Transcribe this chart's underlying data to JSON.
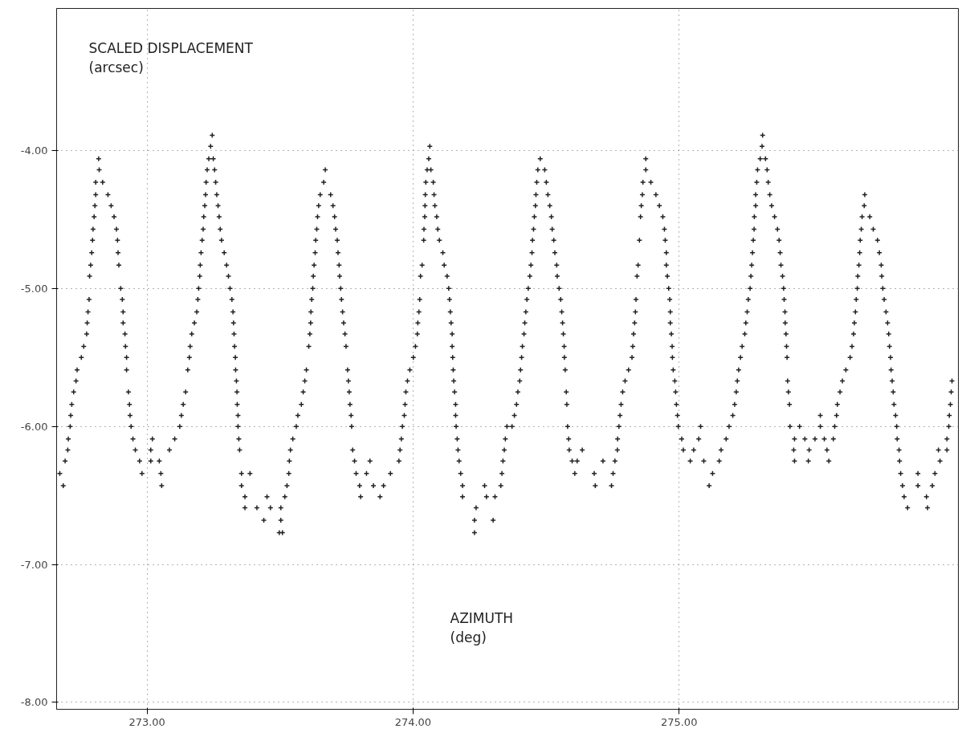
{
  "chart_data": {
    "type": "scatter",
    "ylabel": "SCALED DISPLACEMENT\n(arcsec)",
    "xlabel": "AZIMUTH\n(deg)",
    "color": "#222222",
    "marker": "cross",
    "grid": true,
    "xlim": [
      272.66,
      276.05
    ],
    "ylim": [
      -8.05,
      -2.97
    ],
    "xticks": [
      {
        "value": 273,
        "label": "273.00"
      },
      {
        "value": 274,
        "label": "274.00"
      },
      {
        "value": 275,
        "label": "275.00"
      }
    ],
    "yticks": [
      {
        "value": -8,
        "label": "-8.00"
      },
      {
        "value": -7,
        "label": "-7.00"
      },
      {
        "value": -6,
        "label": "-6.00"
      },
      {
        "value": -5,
        "label": "-5.00"
      },
      {
        "value": -4,
        "label": "-4.00"
      }
    ],
    "x": [
      272.672,
      272.685,
      272.692,
      272.702,
      272.704,
      272.711,
      272.713,
      272.717,
      272.724,
      272.733,
      272.737,
      272.753,
      272.762,
      272.773,
      272.775,
      272.778,
      272.782,
      272.784,
      272.788,
      272.792,
      272.795,
      272.797,
      272.801,
      272.804,
      272.807,
      272.807,
      272.82,
      272.818,
      272.833,
      272.853,
      272.865,
      272.876,
      272.885,
      272.889,
      272.891,
      272.894,
      272.901,
      272.907,
      272.91,
      272.91,
      272.917,
      272.919,
      272.923,
      272.923,
      272.93,
      272.934,
      272.936,
      272.94,
      272.947,
      272.956,
      272.972,
      272.981,
      273.014,
      273.02,
      273.014,
      273.052,
      273.055,
      273.046,
      273.084,
      273.104,
      273.123,
      273.129,
      273.136,
      273.145,
      273.153,
      273.159,
      273.162,
      273.168,
      273.178,
      273.187,
      273.191,
      273.194,
      273.198,
      273.2,
      273.203,
      273.207,
      273.211,
      273.213,
      273.217,
      273.22,
      273.222,
      273.226,
      273.232,
      273.239,
      273.245,
      273.249,
      273.254,
      273.258,
      273.262,
      273.267,
      273.271,
      273.275,
      273.28,
      273.29,
      273.299,
      273.306,
      273.312,
      273.319,
      273.323,
      273.325,
      273.327,
      273.329,
      273.332,
      273.333,
      273.336,
      273.338,
      273.339,
      273.342,
      273.342,
      273.345,
      273.348,
      273.355,
      273.355,
      273.368,
      273.368,
      273.387,
      273.413,
      273.439,
      273.451,
      273.464,
      273.497,
      273.503,
      273.503,
      273.509,
      273.518,
      273.526,
      273.533,
      273.535,
      273.539,
      273.548,
      273.561,
      273.567,
      273.58,
      273.587,
      273.593,
      273.599,
      273.608,
      273.612,
      273.615,
      273.616,
      273.619,
      273.623,
      273.625,
      273.628,
      273.632,
      273.634,
      273.638,
      273.641,
      273.645,
      273.651,
      273.664,
      273.67,
      273.69,
      273.699,
      273.705,
      273.709,
      273.715,
      273.718,
      273.722,
      273.724,
      273.728,
      273.731,
      273.735,
      273.739,
      273.744,
      273.748,
      273.754,
      273.757,
      273.76,
      273.763,
      273.767,
      273.769,
      273.773,
      273.78,
      273.786,
      273.799,
      273.803,
      273.825,
      273.838,
      273.851,
      273.876,
      273.889,
      273.915,
      273.947,
      273.951,
      273.956,
      273.96,
      273.967,
      273.97,
      273.973,
      273.979,
      273.988,
      274.001,
      274.009,
      274.016,
      274.018,
      274.022,
      274.025,
      274.028,
      274.034,
      274.04,
      274.041,
      274.044,
      274.045,
      274.046,
      274.048,
      274.053,
      274.059,
      274.063,
      274.067,
      274.076,
      274.079,
      274.082,
      274.089,
      274.093,
      274.099,
      274.112,
      274.117,
      274.128,
      274.134,
      274.137,
      274.14,
      274.143,
      274.147,
      274.147,
      274.149,
      274.151,
      274.153,
      274.156,
      274.16,
      274.16,
      274.162,
      274.166,
      274.169,
      274.173,
      274.179,
      274.186,
      274.186,
      274.231,
      274.231,
      274.237,
      274.269,
      274.276,
      274.308,
      274.301,
      274.33,
      274.334,
      274.338,
      274.343,
      274.347,
      274.353,
      274.372,
      274.381,
      274.389,
      274.394,
      274.401,
      274.404,
      274.408,
      274.411,
      274.417,
      274.42,
      274.424,
      274.428,
      274.433,
      274.439,
      274.443,
      274.447,
      274.449,
      274.453,
      274.456,
      274.46,
      274.462,
      274.465,
      274.469,
      274.478,
      274.495,
      274.501,
      274.507,
      274.514,
      274.52,
      274.523,
      274.529,
      274.533,
      274.54,
      274.542,
      274.549,
      274.555,
      274.559,
      274.562,
      274.565,
      274.568,
      274.569,
      274.572,
      274.576,
      274.578,
      274.581,
      274.585,
      274.587,
      274.598,
      274.608,
      274.636,
      274.617,
      274.681,
      274.685,
      274.714,
      274.746,
      274.752,
      274.759,
      274.768,
      274.769,
      274.774,
      274.778,
      274.782,
      274.788,
      274.797,
      274.81,
      274.823,
      274.826,
      274.829,
      274.833,
      274.836,
      274.838,
      274.842,
      274.846,
      274.851,
      274.855,
      274.858,
      274.862,
      274.864,
      274.875,
      274.875,
      274.894,
      274.913,
      274.926,
      274.939,
      274.945,
      274.948,
      274.952,
      274.952,
      274.956,
      274.961,
      274.965,
      274.967,
      274.967,
      274.971,
      274.974,
      274.975,
      274.978,
      274.984,
      274.987,
      274.99,
      274.994,
      274.997,
      275.01,
      275.016,
      275.042,
      275.081,
      275.074,
      275.055,
      275.093,
      275.113,
      275.126,
      275.151,
      275.158,
      275.177,
      275.188,
      275.202,
      275.209,
      275.215,
      275.219,
      275.224,
      275.231,
      275.237,
      275.247,
      275.251,
      275.256,
      275.26,
      275.267,
      275.27,
      275.273,
      275.276,
      275.279,
      275.282,
      275.283,
      275.288,
      275.288,
      275.292,
      275.295,
      275.305,
      275.312,
      275.314,
      275.325,
      275.331,
      275.335,
      275.341,
      275.348,
      275.359,
      275.37,
      275.376,
      275.38,
      275.383,
      275.389,
      275.393,
      275.395,
      275.398,
      275.399,
      275.402,
      275.404,
      275.406,
      275.408,
      275.411,
      275.415,
      275.417,
      275.434,
      275.431,
      275.434,
      275.453,
      275.473,
      275.489,
      275.486,
      275.511,
      275.531,
      275.531,
      275.546,
      275.556,
      275.563,
      275.58,
      275.585,
      275.592,
      275.595,
      275.605,
      275.614,
      275.627,
      275.643,
      275.65,
      275.656,
      275.659,
      275.663,
      275.666,
      275.67,
      275.672,
      275.676,
      275.679,
      275.681,
      275.685,
      275.688,
      275.696,
      275.698,
      275.717,
      275.73,
      275.746,
      275.753,
      275.76,
      275.762,
      275.766,
      275.771,
      275.778,
      275.784,
      275.788,
      275.791,
      275.795,
      275.797,
      275.801,
      275.805,
      275.808,
      275.814,
      275.818,
      275.82,
      275.827,
      275.829,
      275.833,
      275.84,
      275.846,
      275.859,
      275.898,
      275.898,
      275.934,
      275.93,
      275.952,
      275.962,
      275.981,
      275.975,
      276.007,
      276.007,
      276.014,
      276.016,
      276.02,
      276.023,
      276.026
    ],
    "values": [
      -6.34,
      -6.43,
      -6.25,
      -6.17,
      -6.09,
      -6.0,
      -5.92,
      -5.84,
      -5.75,
      -5.67,
      -5.59,
      -5.5,
      -5.42,
      -5.33,
      -5.25,
      -5.17,
      -5.08,
      -4.91,
      -4.83,
      -4.74,
      -4.65,
      -4.57,
      -4.48,
      -4.4,
      -4.32,
      -4.23,
      -4.14,
      -4.06,
      -4.23,
      -4.32,
      -4.4,
      -4.48,
      -4.57,
      -4.65,
      -4.74,
      -4.83,
      -5.0,
      -5.08,
      -5.17,
      -5.25,
      -5.33,
      -5.42,
      -5.5,
      -5.59,
      -5.75,
      -5.84,
      -5.92,
      -6.0,
      -6.09,
      -6.17,
      -6.25,
      -6.34,
      -6.25,
      -6.09,
      -6.17,
      -6.34,
      -6.43,
      -6.25,
      -6.17,
      -6.09,
      -6.0,
      -5.92,
      -5.84,
      -5.75,
      -5.59,
      -5.5,
      -5.42,
      -5.33,
      -5.25,
      -5.17,
      -5.08,
      -5.0,
      -4.91,
      -4.83,
      -4.74,
      -4.65,
      -4.57,
      -4.48,
      -4.4,
      -4.32,
      -4.23,
      -4.14,
      -4.06,
      -3.97,
      -3.89,
      -4.06,
      -4.14,
      -4.23,
      -4.32,
      -4.4,
      -4.48,
      -4.57,
      -4.65,
      -4.74,
      -4.83,
      -4.91,
      -5.0,
      -5.08,
      -5.17,
      -5.25,
      -5.33,
      -5.42,
      -5.5,
      -5.59,
      -5.67,
      -5.75,
      -5.84,
      -5.92,
      -6.0,
      -6.09,
      -6.17,
      -6.34,
      -6.43,
      -6.51,
      -6.59,
      -6.34,
      -6.59,
      -6.68,
      -6.51,
      -6.59,
      -6.77,
      -6.59,
      -6.68,
      -6.77,
      -6.51,
      -6.43,
      -6.34,
      -6.25,
      -6.17,
      -6.09,
      -6.0,
      -5.92,
      -5.84,
      -5.75,
      -5.67,
      -5.59,
      -5.42,
      -5.33,
      -5.25,
      -5.17,
      -5.08,
      -5.0,
      -4.91,
      -4.83,
      -4.74,
      -4.65,
      -4.57,
      -4.48,
      -4.4,
      -4.32,
      -4.23,
      -4.14,
      -4.32,
      -4.4,
      -4.48,
      -4.57,
      -4.65,
      -4.74,
      -4.83,
      -4.91,
      -5.0,
      -5.08,
      -5.17,
      -5.25,
      -5.33,
      -5.42,
      -5.59,
      -5.67,
      -5.75,
      -5.84,
      -5.92,
      -6.0,
      -6.17,
      -6.25,
      -6.34,
      -6.43,
      -6.51,
      -6.34,
      -6.25,
      -6.43,
      -6.51,
      -6.43,
      -6.34,
      -6.25,
      -6.17,
      -6.09,
      -6.0,
      -5.92,
      -5.84,
      -5.75,
      -5.67,
      -5.59,
      -5.5,
      -5.42,
      -5.33,
      -5.25,
      -5.17,
      -5.08,
      -4.91,
      -4.83,
      -4.65,
      -4.57,
      -4.48,
      -4.4,
      -4.32,
      -4.23,
      -4.14,
      -4.06,
      -3.97,
      -4.14,
      -4.23,
      -4.32,
      -4.4,
      -4.48,
      -4.57,
      -4.65,
      -4.74,
      -4.83,
      -4.91,
      -5.0,
      -5.08,
      -5.17,
      -5.25,
      -5.33,
      -5.42,
      -5.5,
      -5.59,
      -5.67,
      -5.75,
      -5.84,
      -5.92,
      -6.0,
      -6.09,
      -6.17,
      -6.25,
      -6.34,
      -6.43,
      -6.51,
      -6.77,
      -6.68,
      -6.59,
      -6.43,
      -6.51,
      -6.51,
      -6.68,
      -6.43,
      -6.34,
      -6.25,
      -6.17,
      -6.09,
      -6.0,
      -6.0,
      -5.92,
      -5.84,
      -5.75,
      -5.67,
      -5.59,
      -5.5,
      -5.42,
      -5.33,
      -5.25,
      -5.17,
      -5.08,
      -5.0,
      -4.91,
      -4.83,
      -4.74,
      -4.65,
      -4.57,
      -4.48,
      -4.4,
      -4.32,
      -4.23,
      -4.14,
      -4.06,
      -4.14,
      -4.23,
      -4.32,
      -4.4,
      -4.48,
      -4.57,
      -4.65,
      -4.74,
      -4.83,
      -4.91,
      -5.0,
      -5.08,
      -5.17,
      -5.25,
      -5.33,
      -5.42,
      -5.5,
      -5.59,
      -5.75,
      -5.84,
      -6.0,
      -6.09,
      -6.17,
      -6.25,
      -6.34,
      -6.17,
      -6.25,
      -6.34,
      -6.43,
      -6.25,
      -6.43,
      -6.34,
      -6.25,
      -6.17,
      -6.09,
      -6.0,
      -5.92,
      -5.84,
      -5.75,
      -5.67,
      -5.59,
      -5.5,
      -5.42,
      -5.33,
      -5.25,
      -5.17,
      -5.08,
      -4.91,
      -4.83,
      -4.65,
      -4.48,
      -4.4,
      -4.32,
      -4.23,
      -4.14,
      -4.06,
      -4.23,
      -4.32,
      -4.4,
      -4.48,
      -4.57,
      -4.65,
      -4.74,
      -4.83,
      -4.91,
      -5.0,
      -5.08,
      -5.17,
      -5.25,
      -5.33,
      -5.42,
      -5.5,
      -5.59,
      -5.67,
      -5.75,
      -5.84,
      -5.92,
      -6.0,
      -6.09,
      -6.17,
      -6.25,
      -6.0,
      -6.09,
      -6.17,
      -6.25,
      -6.43,
      -6.34,
      -6.25,
      -6.17,
      -6.09,
      -6.0,
      -5.92,
      -5.84,
      -5.75,
      -5.67,
      -5.59,
      -5.5,
      -5.42,
      -5.33,
      -5.25,
      -5.17,
      -5.08,
      -5.0,
      -4.91,
      -4.83,
      -4.74,
      -4.65,
      -4.57,
      -4.48,
      -4.4,
      -4.32,
      -4.23,
      -4.14,
      -4.06,
      -3.97,
      -3.89,
      -4.06,
      -4.14,
      -4.23,
      -4.32,
      -4.4,
      -4.48,
      -4.57,
      -4.65,
      -4.74,
      -4.83,
      -4.91,
      -5.0,
      -5.08,
      -5.17,
      -5.25,
      -5.33,
      -5.42,
      -5.5,
      -5.67,
      -5.75,
      -5.84,
      -6.0,
      -6.09,
      -6.17,
      -6.25,
      -6.0,
      -6.09,
      -6.17,
      -6.25,
      -6.09,
      -5.92,
      -6.0,
      -6.09,
      -6.17,
      -6.25,
      -6.09,
      -6.0,
      -5.92,
      -5.84,
      -5.75,
      -5.67,
      -5.59,
      -5.5,
      -5.42,
      -5.33,
      -5.25,
      -5.17,
      -5.08,
      -5.0,
      -4.91,
      -4.83,
      -4.74,
      -4.65,
      -4.57,
      -4.48,
      -4.4,
      -4.32,
      -4.48,
      -4.57,
      -4.65,
      -4.74,
      -4.83,
      -4.91,
      -5.0,
      -5.08,
      -5.17,
      -5.25,
      -5.33,
      -5.42,
      -5.5,
      -5.59,
      -5.67,
      -5.75,
      -5.84,
      -5.92,
      -6.0,
      -6.09,
      -6.17,
      -6.25,
      -6.34,
      -6.43,
      -6.51,
      -6.59,
      -6.43,
      -6.34,
      -6.59,
      -6.51,
      -6.43,
      -6.34,
      -6.25,
      -6.17,
      -6.17,
      -6.09,
      -6.0,
      -5.92,
      -5.84,
      -5.75,
      -5.67
    ]
  }
}
